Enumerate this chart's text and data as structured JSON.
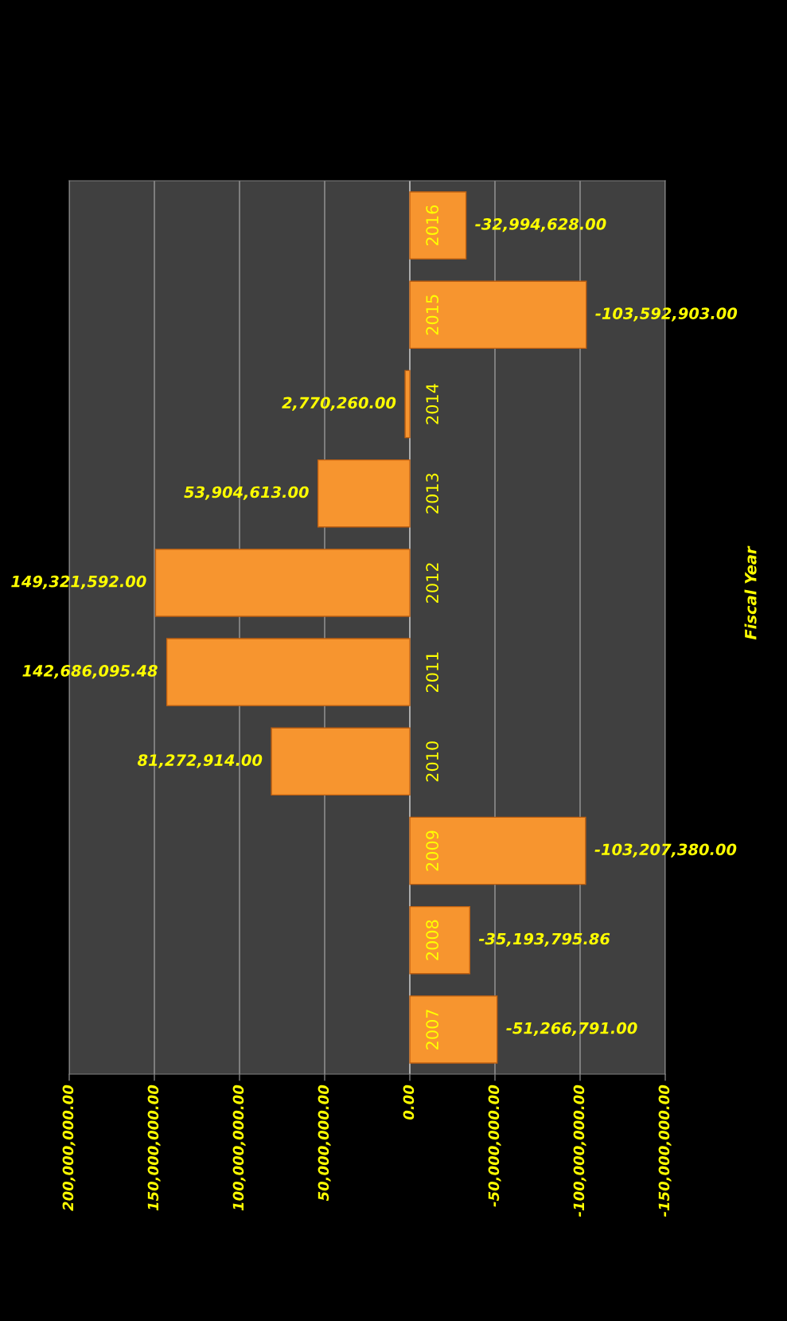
{
  "chart_data": {
    "type": "bar",
    "orientation": "horizontal",
    "annotations": [
      "Fiscal Year"
    ],
    "categories": [
      "2016",
      "2015",
      "2014",
      "2013",
      "2012",
      "2011",
      "2010",
      "2009",
      "2008",
      "2007"
    ],
    "values": [
      -32994628.0,
      -103592903.0,
      2770260.0,
      53904613.0,
      149321592.0,
      142686095.48,
      81272914.0,
      -103207380.0,
      -35193795.86,
      -51266791.0
    ],
    "value_labels": [
      "-32,994,628.00",
      "-103,592,903.00",
      "2,770,260.00",
      "53,904,613.00",
      "149,321,592.00",
      "142,686,095.48",
      "81,272,914.00",
      "-103,207,380.00",
      "-35,193,795.86",
      "-51,266,791.00"
    ],
    "color": "#f7952f",
    "xlim": [
      200000000,
      -150000000
    ],
    "xticks": [
      {
        "value": 200000000,
        "label": "200,000,000.00"
      },
      {
        "value": 150000000,
        "label": "150,000,000.00"
      },
      {
        "value": 100000000,
        "label": "100,000,000.00"
      },
      {
        "value": 50000000,
        "label": "50,000,000.00"
      },
      {
        "value": 0,
        "label": "0.00"
      },
      {
        "value": -50000000,
        "label": "-50,000,000.00"
      },
      {
        "value": -100000000,
        "label": "-100,000,000.00"
      },
      {
        "value": -150000000,
        "label": "-150,000,000.00"
      }
    ],
    "grid": "x"
  }
}
